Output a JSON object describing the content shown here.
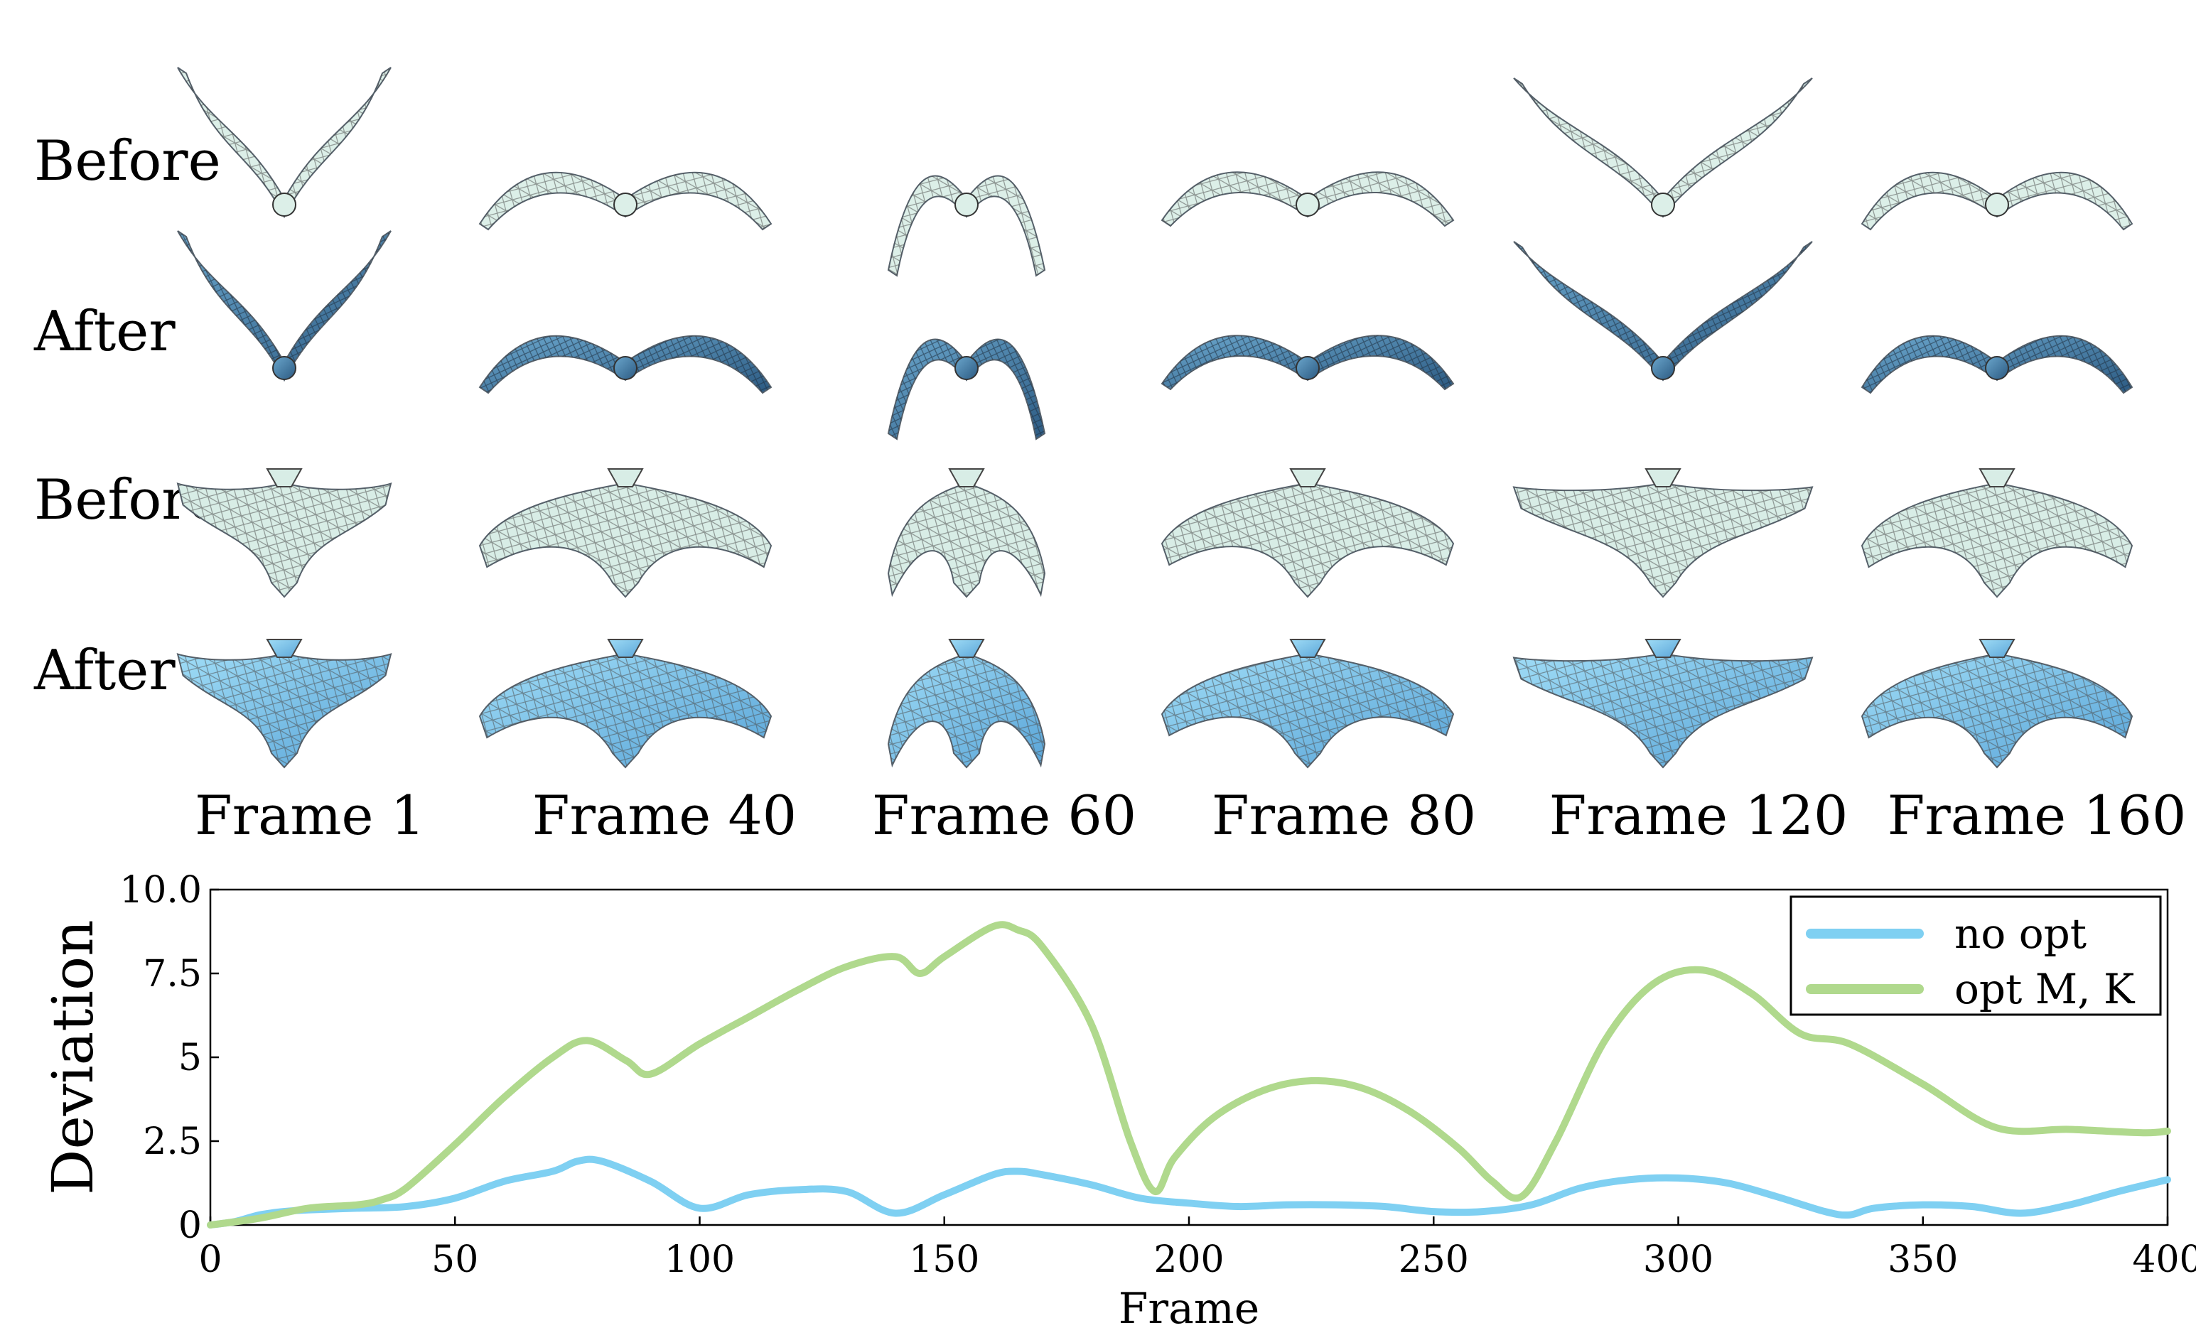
{
  "figure": {
    "row_labels": [
      "Before",
      "After",
      "Before",
      "After"
    ],
    "frames": [
      "Frame 1",
      "Frame 40",
      "Frame 60",
      "Frame 80",
      "Frame 120",
      "Frame 160"
    ],
    "colors": {
      "before_mesh": "#dcefe8",
      "after_top": "#2f5e88",
      "after_bottom": "#78c3ea",
      "mesh_lines": "#444444"
    }
  },
  "chart_data": {
    "type": "line",
    "title": "",
    "xlabel": "Frame",
    "ylabel": "Deviation",
    "xlim": [
      0,
      400
    ],
    "ylim": [
      0,
      10
    ],
    "xticks": [
      "0",
      "50",
      "100",
      "150",
      "200",
      "250",
      "300",
      "350",
      "400"
    ],
    "yticks": [
      "0",
      "2.5",
      "5",
      "7.5",
      "10.0"
    ],
    "legend_position": "top-right",
    "grid": false,
    "series": [
      {
        "name": "no opt",
        "color": "#7fd0f2",
        "x": [
          0,
          5,
          10,
          15,
          20,
          30,
          40,
          50,
          60,
          70,
          75,
          80,
          90,
          100,
          110,
          120,
          130,
          140,
          150,
          160,
          165,
          170,
          180,
          190,
          200,
          210,
          220,
          230,
          240,
          250,
          260,
          270,
          280,
          290,
          300,
          310,
          320,
          330,
          335,
          340,
          350,
          360,
          370,
          380,
          390,
          400
        ],
        "y": [
          0.0,
          0.1,
          0.3,
          0.4,
          0.45,
          0.5,
          0.55,
          0.8,
          1.3,
          1.6,
          1.9,
          1.9,
          1.3,
          0.5,
          0.9,
          1.05,
          1.0,
          0.35,
          0.9,
          1.5,
          1.6,
          1.5,
          1.2,
          0.8,
          0.65,
          0.55,
          0.6,
          0.6,
          0.55,
          0.4,
          0.4,
          0.6,
          1.1,
          1.35,
          1.4,
          1.25,
          0.85,
          0.4,
          0.3,
          0.5,
          0.6,
          0.55,
          0.35,
          0.6,
          1.0,
          1.35
        ]
      },
      {
        "name": "opt M, K",
        "color": "#b0d98d",
        "x": [
          0,
          10,
          20,
          30,
          35,
          40,
          50,
          60,
          70,
          77,
          85,
          90,
          100,
          110,
          120,
          130,
          140,
          145,
          150,
          160,
          165,
          170,
          180,
          188,
          193,
          197,
          205,
          215,
          225,
          235,
          245,
          255,
          262,
          268,
          275,
          285,
          295,
          305,
          315,
          325,
          335,
          350,
          365,
          380,
          395,
          400
        ],
        "y": [
          0.0,
          0.2,
          0.5,
          0.6,
          0.75,
          1.1,
          2.4,
          3.8,
          5.0,
          5.5,
          4.9,
          4.5,
          5.4,
          6.2,
          7.0,
          7.7,
          8.0,
          7.5,
          8.0,
          8.9,
          8.8,
          8.3,
          6.0,
          2.5,
          1.0,
          2.0,
          3.2,
          4.0,
          4.3,
          4.1,
          3.4,
          2.3,
          1.3,
          0.85,
          2.5,
          5.5,
          7.2,
          7.6,
          6.9,
          5.7,
          5.4,
          4.2,
          2.9,
          2.85,
          2.75,
          2.8
        ]
      }
    ]
  }
}
